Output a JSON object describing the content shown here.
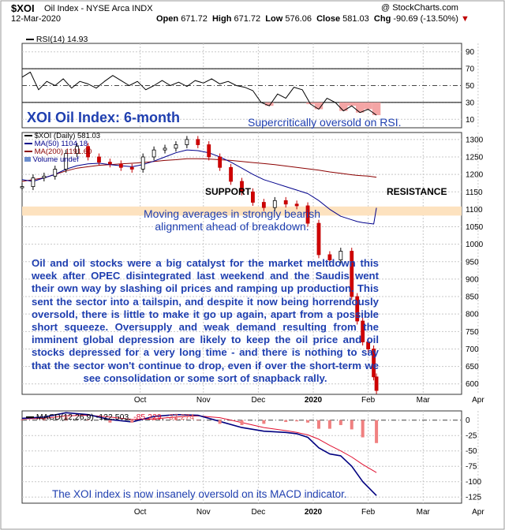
{
  "header": {
    "symbol": "$XOI",
    "name": "Oil Index - NYSE Arca INDX",
    "date": "12-Mar-2020",
    "source": "@ StockCharts.com",
    "ohlc": {
      "open_label": "Open",
      "open": "671.72",
      "high_label": "High",
      "high": "671.72",
      "low_label": "Low",
      "low": "576.06",
      "close_label": "Close",
      "close": "581.03",
      "chg_label": "Chg",
      "chg": "-90.69 (-13.50%)"
    }
  },
  "rsi_panel": {
    "legend": "RSI(14) 14.93",
    "annotation": "Supercritically oversold on RSI.",
    "y_ticks": [
      "90",
      "70",
      "50",
      "30",
      "10"
    ]
  },
  "price_panel": {
    "title": "XOI Oil Index: 6-month",
    "legend": [
      "$XOI (Daily) 581.03",
      "MA(50) 1104.18",
      "MA(200) 1191.60",
      "Volume undef"
    ],
    "y_ticks": [
      "1300",
      "1250",
      "1200",
      "1150",
      "1100",
      "1050",
      "1000",
      "950",
      "900",
      "850",
      "800",
      "750",
      "700",
      "650",
      "600"
    ],
    "support_label": "SUPPORT",
    "resistance_label": "RESISTANCE",
    "ma_note": "Moving averages in strongly bearish alignment ahead of breakdown.",
    "commentary": "Oil and oil stocks were a big catalyst for the market meltdown this week after OPEC disintegrated last weekend and the Saudis went their own way by slashing oil prices and ramping up production. This sent the sector into a tailspin, and despite it now being horrendously oversold, there is little to make it go up again, apart from a possible short squeeze. Oversupply and weak demand resulting from the imminent global depression are likely to keep the oil price and oil stocks depressed for a very long time - and there is nothing to say that the sector won't continue to drop, even if over the short-term we see consolidation or some sort of snapback rally."
  },
  "macd_panel": {
    "legend_label": "MACD(12,26,9)",
    "macd_value": "-122.503",
    "signal_value": "-85.229",
    "hist_value": "-37.274",
    "y_ticks": [
      "0",
      "-25",
      "-50",
      "-75",
      "-100",
      "-125"
    ],
    "annotation": "The XOI index is now insanely oversold on its MACD indicator."
  },
  "x_axis": {
    "labels": [
      "Oct",
      "Nov",
      "Dec",
      "2020",
      "Feb",
      "Mar",
      "Apr"
    ]
  },
  "colors": {
    "price": "#000000",
    "ma50": "#00008b",
    "ma200": "#8b0000",
    "support_band": "#fde2bf",
    "hist": "#f08080",
    "macd_line": "#000080",
    "signal_line": "#e01030",
    "annotation": "#1f3fb0"
  },
  "chart_data": [
    {
      "type": "line",
      "title": "RSI(14)",
      "ylim": [
        0,
        100
      ],
      "grid": true,
      "x": [
        0,
        3,
        6,
        9,
        12,
        15,
        18,
        21,
        24,
        27,
        30,
        33,
        36,
        39,
        42,
        45,
        48,
        51,
        54,
        57,
        60,
        63,
        66,
        69,
        72,
        75,
        78,
        81,
        84,
        87,
        90,
        93,
        96,
        99,
        102,
        105,
        108,
        111,
        114,
        117,
        120,
        123,
        126,
        129
      ],
      "series": [
        {
          "name": "RSI(14)",
          "values": [
            60,
            66,
            45,
            55,
            50,
            58,
            47,
            55,
            52,
            47,
            55,
            62,
            56,
            50,
            55,
            45,
            50,
            56,
            50,
            54,
            49,
            56,
            53,
            58,
            52,
            55,
            50,
            48,
            44,
            30,
            26,
            40,
            35,
            48,
            45,
            28,
            22,
            35,
            30,
            20,
            26,
            18,
            22,
            14.93
          ]
        }
      ]
    },
    {
      "type": "line",
      "title": "$XOI (Daily)",
      "ylim": [
        570,
        1320
      ],
      "grid": true,
      "x": [
        0,
        4,
        8,
        12,
        16,
        20,
        24,
        28,
        32,
        36,
        40,
        44,
        48,
        52,
        56,
        60,
        64,
        68,
        72,
        76,
        80,
        84,
        88,
        92,
        96,
        100,
        104,
        108,
        112,
        116,
        120,
        122,
        124,
        126,
        128,
        129
      ],
      "series": [
        {
          "name": "$XOI",
          "values": [
            1165,
            1190,
            1195,
            1215,
            1260,
            1280,
            1250,
            1235,
            1230,
            1220,
            1215,
            1250,
            1270,
            1275,
            1285,
            1300,
            1285,
            1250,
            1220,
            1180,
            1150,
            1120,
            1105,
            1125,
            1115,
            1110,
            1060,
            970,
            955,
            980,
            850,
            780,
            720,
            700,
            620,
            581.03
          ]
        },
        {
          "name": "MA(50)",
          "values": [
            1185,
            1180,
            1190,
            1200,
            1215,
            1225,
            1230,
            1232,
            1228,
            1225,
            1222,
            1228,
            1238,
            1250,
            1262,
            1270,
            1268,
            1262,
            1250,
            1235,
            1218,
            1200,
            1185,
            1175,
            1165,
            1155,
            1145,
            1125,
            1100,
            1080,
            1070,
            1065,
            1062,
            1060,
            1058,
            1104.18
          ]
        },
        {
          "name": "MA(200)",
          "values": [
            1180,
            1185,
            1190,
            1200,
            1210,
            1218,
            1222,
            1226,
            1228,
            1230,
            1232,
            1234,
            1237,
            1240,
            1242,
            1245,
            1245,
            1244,
            1242,
            1240,
            1237,
            1234,
            1231,
            1228,
            1224,
            1220,
            1216,
            1212,
            1207,
            1203,
            1199,
            1197,
            1196,
            1195,
            1193,
            1191.6
          ]
        }
      ]
    },
    {
      "type": "line",
      "title": "MACD(12,26,9)",
      "ylim": [
        -135,
        15
      ],
      "grid": true,
      "x": [
        0,
        8,
        16,
        24,
        32,
        40,
        48,
        56,
        64,
        72,
        80,
        88,
        96,
        100,
        104,
        108,
        112,
        116,
        120,
        124,
        129
      ],
      "series": [
        {
          "name": "MACD",
          "values": [
            3,
            5,
            12,
            9,
            1,
            -3,
            6,
            9,
            8,
            -2,
            -12,
            -18,
            -20,
            -22,
            -28,
            -45,
            -55,
            -58,
            -75,
            -100,
            -122.503
          ]
        },
        {
          "name": "Signal",
          "values": [
            2,
            3,
            7,
            8,
            5,
            1,
            2,
            5,
            7,
            4,
            -4,
            -12,
            -17,
            -20,
            -24,
            -31,
            -41,
            -50,
            -60,
            -72,
            -85.229
          ]
        },
        {
          "name": "Histogram",
          "values": [
            1,
            2,
            5,
            1,
            -4,
            -4,
            4,
            4,
            1,
            -6,
            -8,
            -6,
            -3,
            -2,
            -4,
            -14,
            -14,
            -8,
            -15,
            -28,
            -37.274
          ]
        }
      ]
    }
  ]
}
